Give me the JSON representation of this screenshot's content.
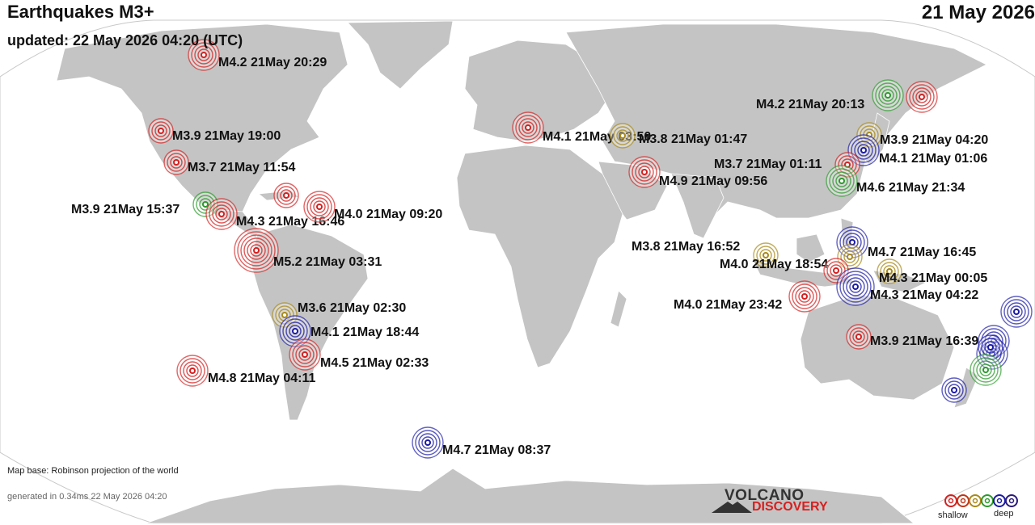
{
  "header": {
    "title": "Earthquakes M3+",
    "updated": "updated: 22 May 2026 04:20 (UTC)",
    "date": "21 May 2026"
  },
  "footer": {
    "map_base": "Map base: Robinson projection of the world",
    "generated": "generated in 0.34ms 22 May 2026 04:20"
  },
  "logo": {
    "line1": "VOLCANO",
    "line2": "DISCOVERY"
  },
  "legend": {
    "shallow_label": "shallow",
    "deep_label": "deep",
    "colors": [
      "#d42020",
      "#c03518",
      "#a88a18",
      "#2a9a2a",
      "#1a1aa6",
      "#2a1a7a"
    ]
  },
  "colors": {
    "ocean": "#ffffff",
    "land": "#c4c4c4",
    "map_outline": "#c8c8c8"
  },
  "quakes": [
    {
      "label": "M4.2 21May 20:29",
      "depth_color": "red"
    },
    {
      "label": "M3.9 21May 19:00",
      "depth_color": "red"
    },
    {
      "label": "M3.7 21May 11:54",
      "depth_color": "red"
    },
    {
      "label": "M3.9 21May 15:37",
      "depth_color": "green"
    },
    {
      "label": "M4.3 21May 16:46",
      "depth_color": "red"
    },
    {
      "label": "M4.0 21May 09:20",
      "depth_color": "red"
    },
    {
      "label": "",
      "depth_color": "red"
    },
    {
      "label": "M5.2 21May 03:31",
      "depth_color": "red"
    },
    {
      "label": "M3.6 21May 02:30",
      "depth_color": "olive"
    },
    {
      "label": "M4.1 21May 18:44",
      "depth_color": "blue"
    },
    {
      "label": "M4.5 21May 02:33",
      "depth_color": "red"
    },
    {
      "label": "M4.8 21May 04:11",
      "depth_color": "red"
    },
    {
      "label": "M4.7 21May 08:37",
      "depth_color": "blue"
    },
    {
      "label": "M4.1 21May 03:50",
      "depth_color": "red"
    },
    {
      "label": "M3.8 21May 01:47",
      "depth_color": "olive"
    },
    {
      "label": "M4.9 21May 09:56",
      "depth_color": "red"
    },
    {
      "label": "M4.2 21May 20:13",
      "depth_color": "green"
    },
    {
      "label": "",
      "depth_color": "red"
    },
    {
      "label": "M3.9 21May 04:20",
      "depth_color": "olive"
    },
    {
      "label": "M4.1 21May 01:06",
      "depth_color": "blue"
    },
    {
      "label": "M3.7 21May 01:11",
      "depth_color": "red"
    },
    {
      "label": "M4.6 21May 21:34",
      "depth_color": "green"
    },
    {
      "label": "M3.8 21May 16:52",
      "depth_color": "olive"
    },
    {
      "label": "M4.7 21May 16:45",
      "depth_color": "blue"
    },
    {
      "label": "M4.0 21May 18:54",
      "depth_color": "olive"
    },
    {
      "label": "",
      "depth_color": "red"
    },
    {
      "label": "M4.3 21May 00:05",
      "depth_color": "olive"
    },
    {
      "label": "M4.3 21May 04:22",
      "depth_color": "blue"
    },
    {
      "label": "",
      "depth_color": "blue"
    },
    {
      "label": "M4.0 21May 23:42",
      "depth_color": "red"
    },
    {
      "label": "M3.9 21May 16:39",
      "depth_color": "red"
    },
    {
      "label": "",
      "depth_color": "blue"
    },
    {
      "label": "",
      "depth_color": "blue"
    },
    {
      "label": "",
      "depth_color": "blue"
    },
    {
      "label": "",
      "depth_color": "green"
    },
    {
      "label": "",
      "depth_color": "blue"
    }
  ]
}
